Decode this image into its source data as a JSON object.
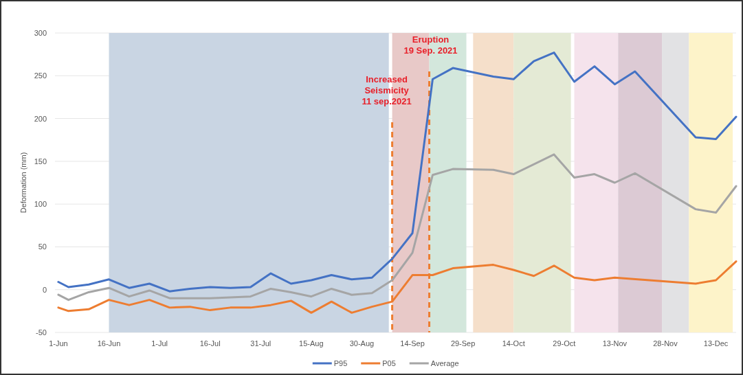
{
  "chart_data": {
    "type": "line",
    "ylabel": "Deformation (mm)",
    "xlim": [
      "2021-05-31",
      "2021-12-19"
    ],
    "ylim": [
      -50,
      300
    ],
    "xticks": [
      {
        "value": "2021-06-01",
        "label": "1-Jun"
      },
      {
        "value": "2021-06-16",
        "label": "16-Jun"
      },
      {
        "value": "2021-07-01",
        "label": "1-Jul"
      },
      {
        "value": "2021-07-16",
        "label": "16-Jul"
      },
      {
        "value": "2021-07-31",
        "label": "31-Jul"
      },
      {
        "value": "2021-08-15",
        "label": "15-Aug"
      },
      {
        "value": "2021-08-30",
        "label": "30-Aug"
      },
      {
        "value": "2021-09-14",
        "label": "14-Sep"
      },
      {
        "value": "2021-09-29",
        "label": "29-Sep"
      },
      {
        "value": "2021-10-14",
        "label": "14-Oct"
      },
      {
        "value": "2021-10-29",
        "label": "29-Oct"
      },
      {
        "value": "2021-11-13",
        "label": "13-Nov"
      },
      {
        "value": "2021-11-28",
        "label": "28-Nov"
      },
      {
        "value": "2021-12-13",
        "label": "13-Dec"
      }
    ],
    "yticks": [
      -50,
      0,
      50,
      100,
      150,
      200,
      250,
      300
    ],
    "grid": "y",
    "legend": "bottom",
    "line_style": "solid",
    "series": [
      {
        "name": "P95",
        "color": "#4472c4",
        "x": [
          "2021-06-01",
          "2021-06-04",
          "2021-06-10",
          "2021-06-16",
          "2021-06-22",
          "2021-06-28",
          "2021-07-04",
          "2021-07-10",
          "2021-07-16",
          "2021-07-22",
          "2021-07-28",
          "2021-08-03",
          "2021-08-09",
          "2021-08-15",
          "2021-08-21",
          "2021-08-27",
          "2021-09-02",
          "2021-09-08",
          "2021-09-14",
          "2021-09-20",
          "2021-09-26",
          "2021-10-08",
          "2021-10-14",
          "2021-10-20",
          "2021-10-26",
          "2021-11-01",
          "2021-11-07",
          "2021-11-13",
          "2021-11-19",
          "2021-12-07",
          "2021-12-13",
          "2021-12-19"
        ],
        "values": [
          9,
          3,
          6,
          12,
          2,
          7,
          -2,
          1,
          3,
          2,
          3,
          19,
          7,
          11,
          17,
          12,
          14,
          36,
          66,
          246,
          259,
          249,
          246,
          267,
          277,
          243,
          261,
          240,
          255,
          178,
          176,
          202
        ]
      },
      {
        "name": "P05",
        "color": "#ed7d31",
        "x": [
          "2021-06-01",
          "2021-06-04",
          "2021-06-10",
          "2021-06-16",
          "2021-06-22",
          "2021-06-28",
          "2021-07-04",
          "2021-07-10",
          "2021-07-16",
          "2021-07-22",
          "2021-07-28",
          "2021-08-03",
          "2021-08-09",
          "2021-08-15",
          "2021-08-21",
          "2021-08-27",
          "2021-09-02",
          "2021-09-08",
          "2021-09-14",
          "2021-09-20",
          "2021-09-26",
          "2021-10-02",
          "2021-10-08",
          "2021-10-14",
          "2021-10-20",
          "2021-10-26",
          "2021-11-01",
          "2021-11-07",
          "2021-11-13",
          "2021-12-07",
          "2021-12-13",
          "2021-12-19"
        ],
        "values": [
          -21,
          -25,
          -23,
          -12,
          -18,
          -12,
          -21,
          -20,
          -24,
          -21,
          -21,
          -18,
          -13,
          -27,
          -14,
          -27,
          -20,
          -14,
          17,
          17,
          25,
          27,
          29,
          23,
          16,
          28,
          14,
          11,
          14,
          7,
          11,
          33
        ]
      },
      {
        "name": "Average",
        "color": "#a5a5a5",
        "x": [
          "2021-06-01",
          "2021-06-04",
          "2021-06-10",
          "2021-06-16",
          "2021-06-22",
          "2021-06-28",
          "2021-07-04",
          "2021-07-10",
          "2021-07-16",
          "2021-07-22",
          "2021-07-28",
          "2021-08-03",
          "2021-08-09",
          "2021-08-15",
          "2021-08-21",
          "2021-08-27",
          "2021-09-02",
          "2021-09-08",
          "2021-09-14",
          "2021-09-20",
          "2021-09-26",
          "2021-10-08",
          "2021-10-14",
          "2021-10-26",
          "2021-11-01",
          "2021-11-07",
          "2021-11-13",
          "2021-11-19",
          "2021-12-07",
          "2021-12-13",
          "2021-12-19"
        ],
        "values": [
          -6,
          -12,
          -3,
          2,
          -8,
          -1,
          -10,
          -10,
          -10,
          -9,
          -8,
          1,
          -3,
          -8,
          1,
          -6,
          -4,
          11,
          43,
          134,
          141,
          140,
          135,
          158,
          131,
          135,
          125,
          136,
          94,
          90,
          121
        ]
      }
    ],
    "bands": [
      {
        "axis": "x",
        "from": "2021-06-16",
        "to": "2021-09-07",
        "color": "#c9d5e3"
      },
      {
        "axis": "x",
        "from": "2021-09-08",
        "to": "2021-09-19",
        "color": "#e8c9c8"
      },
      {
        "axis": "x",
        "from": "2021-09-19",
        "to": "2021-09-30",
        "color": "#d3e7dc"
      },
      {
        "axis": "x",
        "from": "2021-10-02",
        "to": "2021-10-14",
        "color": "#f5dfca"
      },
      {
        "axis": "x",
        "from": "2021-10-14",
        "to": "2021-10-31",
        "color": "#e4ead5"
      },
      {
        "axis": "x",
        "from": "2021-11-01",
        "to": "2021-11-14",
        "color": "#f5e3ec"
      },
      {
        "axis": "x",
        "from": "2021-11-14",
        "to": "2021-11-27",
        "color": "#dccad4"
      },
      {
        "axis": "x",
        "from": "2021-11-27",
        "to": "2021-12-05",
        "color": "#e2e2e4"
      },
      {
        "axis": "x",
        "from": "2021-12-05",
        "to": "2021-12-18",
        "color": "#fdf3c9"
      }
    ],
    "ref_lines": [
      {
        "axis": "x",
        "value": "2021-09-08",
        "label": "Increased\nSeismicity\n11 sep.2021",
        "color": "#ed7d31",
        "line_style": "dashed"
      },
      {
        "axis": "x",
        "value": "2021-09-19",
        "label": "Eruption\n19 Sep. 2021",
        "color": "#ed7d31",
        "line_style": "dashed"
      }
    ]
  }
}
